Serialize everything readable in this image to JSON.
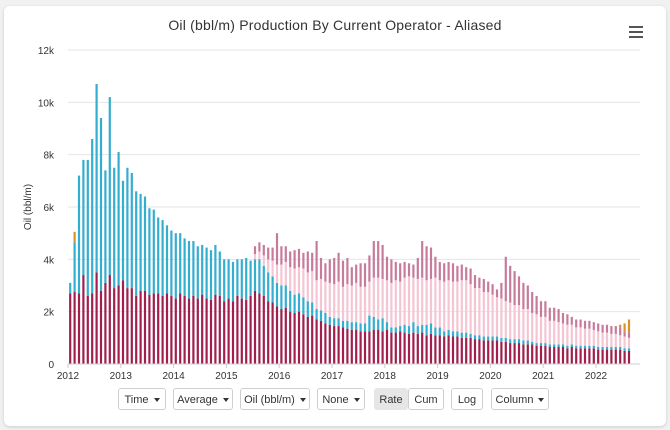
{
  "chart_title": "Oil (bbl/m) Production By Current Operator - Aliased",
  "controls": {
    "time": "Time",
    "average": "Average",
    "oil": "Oil (bbl/m)",
    "none": "None",
    "rate": "Rate",
    "cum": "Cum",
    "log": "Log",
    "column": "Column",
    "active_toggle": "Rate"
  },
  "colors": {
    "series_crimson": "#a01f4c",
    "series_blue": "#34aecf",
    "series_pink": "#f4c6d4",
    "series_mauve": "#c77b9a",
    "series_orange": "#d9912a",
    "grid": "#e6e6e6",
    "axis_text": "#333333"
  },
  "chart_data": {
    "type": "bar",
    "stacked": true,
    "ylabel": "Oil (bbl/m)",
    "xlabel": "",
    "ylim": [
      0,
      12000
    ],
    "y_ticks": [
      "0",
      "2k",
      "4k",
      "6k",
      "8k",
      "10k",
      "12k"
    ],
    "x_ticks": [
      "2012",
      "2013",
      "2014",
      "2015",
      "2016",
      "2017",
      "2018",
      "2019",
      "2020",
      "2021",
      "2022"
    ],
    "grid": true,
    "legend": "none",
    "start": "2012-01",
    "series": [
      {
        "color": "#a01f4c",
        "values": [
          2700,
          2750,
          2700,
          3400,
          2600,
          2700,
          3500,
          2800,
          3100,
          3400,
          2900,
          3000,
          3200,
          2900,
          2900,
          2600,
          2800,
          2800,
          2650,
          2700,
          2700,
          2600,
          2700,
          2600,
          2500,
          2700,
          2600,
          2500,
          2600,
          2500,
          2650,
          2500,
          2450,
          2650,
          2600,
          2400,
          2500,
          2400,
          2600,
          2500,
          2450,
          2600,
          2800,
          2700,
          2600,
          2400,
          2350,
          2200,
          2100,
          2150,
          2000,
          1950,
          2000,
          1900,
          1800,
          1850,
          1700,
          1650,
          1550,
          1500,
          1450,
          1450,
          1400,
          1350,
          1300,
          1300,
          1250,
          1250,
          1250,
          1300,
          1300,
          1250,
          1300,
          1200,
          1200,
          1250,
          1200,
          1150,
          1200,
          1150,
          1200,
          1100,
          1150,
          1100,
          1100,
          1050,
          1100,
          1050,
          1050,
          1000,
          1000,
          1000,
          950,
          950,
          900,
          900,
          900,
          900,
          850,
          850,
          800,
          800,
          800,
          750,
          750,
          750,
          700,
          700,
          700,
          650,
          650,
          650,
          650,
          600,
          650,
          600,
          600,
          600,
          600,
          600,
          550,
          550,
          550,
          550,
          550,
          550,
          500,
          500
        ]
      },
      {
        "color": "#34aecf",
        "values": [
          400,
          1900,
          4500,
          4400,
          5200,
          5900,
          7200,
          6600,
          4300,
          6800,
          4600,
          5100,
          3800,
          4600,
          4400,
          4000,
          3700,
          3600,
          3300,
          3200,
          2900,
          2900,
          2600,
          2500,
          2500,
          2300,
          2200,
          2200,
          2100,
          2000,
          1900,
          1950,
          1900,
          1900,
          1700,
          1600,
          1500,
          1500,
          1400,
          1500,
          1600,
          1350,
          1200,
          1300,
          1150,
          1100,
          1000,
          900,
          900,
          850,
          800,
          700,
          700,
          650,
          600,
          500,
          400,
          400,
          400,
          300,
          300,
          300,
          250,
          300,
          300,
          300,
          300,
          300,
          600,
          500,
          400,
          500,
          300,
          200,
          200,
          200,
          300,
          300,
          400,
          300,
          300,
          400,
          400,
          300,
          300,
          200,
          200,
          200,
          200,
          200,
          200,
          150,
          150,
          150,
          150,
          150,
          150,
          150,
          150,
          150,
          150,
          150,
          150,
          150,
          150,
          100,
          100,
          100,
          100,
          100,
          100,
          100,
          100,
          100,
          100,
          100,
          100,
          100,
          100,
          100,
          100,
          100,
          100,
          100,
          100,
          100,
          100,
          100
        ]
      },
      {
        "color": "#f4c6d4",
        "values": [
          0,
          0,
          0,
          0,
          0,
          0,
          0,
          0,
          0,
          0,
          0,
          0,
          0,
          0,
          0,
          0,
          0,
          0,
          0,
          0,
          0,
          0,
          0,
          0,
          0,
          0,
          0,
          0,
          0,
          0,
          0,
          0,
          0,
          0,
          0,
          0,
          0,
          0,
          0,
          0,
          0,
          0,
          200,
          300,
          400,
          500,
          600,
          700,
          800,
          900,
          900,
          1000,
          1000,
          1100,
          1100,
          1200,
          1100,
          1200,
          1200,
          1300,
          1300,
          1400,
          1300,
          1400,
          1400,
          1500,
          1400,
          1400,
          1300,
          1500,
          1600,
          1500,
          1600,
          1700,
          1800,
          1700,
          1800,
          1900,
          1700,
          1800,
          1800,
          1700,
          1700,
          1900,
          1800,
          1900,
          1900,
          1900,
          1900,
          2000,
          2000,
          1900,
          1800,
          1800,
          1700,
          1700,
          1600,
          1500,
          1500,
          1400,
          1400,
          1300,
          1300,
          1200,
          1200,
          1100,
          1100,
          1000,
          1000,
          900,
          900,
          850,
          800,
          800,
          750,
          700,
          700,
          650,
          650,
          600,
          600,
          550,
          550,
          500,
          500,
          450,
          450,
          400
        ]
      },
      {
        "color": "#c77b9a",
        "values": [
          0,
          0,
          0,
          0,
          0,
          0,
          0,
          0,
          0,
          0,
          0,
          0,
          0,
          0,
          0,
          0,
          0,
          0,
          0,
          0,
          0,
          0,
          0,
          0,
          0,
          0,
          0,
          0,
          0,
          0,
          0,
          0,
          0,
          0,
          0,
          0,
          0,
          0,
          0,
          0,
          0,
          0,
          300,
          350,
          400,
          450,
          500,
          1200,
          700,
          600,
          600,
          700,
          700,
          600,
          800,
          700,
          1500,
          800,
          700,
          900,
          1000,
          1100,
          1000,
          1000,
          700,
          700,
          900,
          900,
          1000,
          1400,
          1400,
          1300,
          900,
          900,
          700,
          700,
          600,
          500,
          500,
          800,
          1400,
          1300,
          1200,
          800,
          700,
          700,
          700,
          700,
          600,
          600,
          500,
          600,
          500,
          400,
          500,
          400,
          400,
          300,
          600,
          1700,
          1400,
          1300,
          1100,
          1000,
          900,
          800,
          700,
          600,
          600,
          500,
          500,
          500,
          400,
          400,
          300,
          300,
          300,
          300,
          300,
          300,
          300,
          300,
          300,
          300,
          300,
          300,
          200,
          200
        ]
      },
      {
        "color": "#d9912a",
        "values": [
          0,
          400,
          0,
          0,
          0,
          0,
          0,
          0,
          0,
          0,
          0,
          0,
          0,
          0,
          0,
          0,
          0,
          0,
          0,
          0,
          0,
          0,
          0,
          0,
          0,
          0,
          0,
          0,
          0,
          0,
          0,
          0,
          0,
          0,
          0,
          0,
          0,
          0,
          0,
          0,
          0,
          0,
          0,
          0,
          0,
          0,
          0,
          0,
          0,
          0,
          0,
          0,
          0,
          0,
          0,
          0,
          0,
          0,
          0,
          0,
          0,
          0,
          0,
          0,
          0,
          0,
          0,
          0,
          0,
          0,
          0,
          0,
          0,
          0,
          0,
          0,
          0,
          0,
          0,
          0,
          0,
          0,
          0,
          0,
          0,
          0,
          0,
          0,
          0,
          0,
          0,
          0,
          0,
          0,
          0,
          0,
          0,
          0,
          0,
          0,
          0,
          0,
          0,
          0,
          0,
          0,
          0,
          0,
          0,
          0,
          0,
          0,
          0,
          0,
          0,
          0,
          0,
          0,
          0,
          0,
          0,
          0,
          0,
          0,
          0,
          100,
          300,
          500
        ]
      }
    ]
  }
}
